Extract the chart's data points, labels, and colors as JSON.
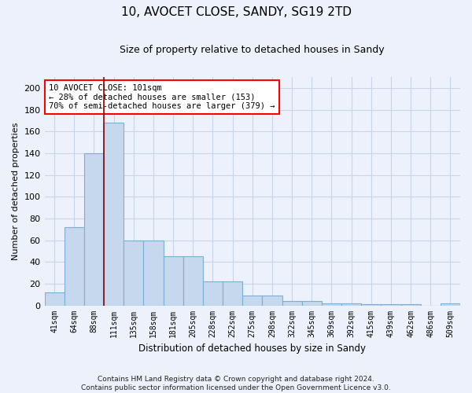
{
  "title": "10, AVOCET CLOSE, SANDY, SG19 2TD",
  "subtitle": "Size of property relative to detached houses in Sandy",
  "xlabel": "Distribution of detached houses by size in Sandy",
  "ylabel": "Number of detached properties",
  "bar_labels": [
    "41sqm",
    "64sqm",
    "88sqm",
    "111sqm",
    "135sqm",
    "158sqm",
    "181sqm",
    "205sqm",
    "228sqm",
    "252sqm",
    "275sqm",
    "298sqm",
    "322sqm",
    "345sqm",
    "369sqm",
    "392sqm",
    "415sqm",
    "439sqm",
    "462sqm",
    "486sqm",
    "509sqm"
  ],
  "bar_values": [
    12,
    72,
    140,
    168,
    60,
    60,
    45,
    45,
    22,
    22,
    9,
    9,
    4,
    4,
    2,
    2,
    1,
    1,
    1,
    0,
    2
  ],
  "bar_color": "#c5d8ed",
  "bar_edge_color": "#7bafd4",
  "grid_color": "#c8d4e8",
  "background_color": "#edf1fb",
  "red_line_index": 3,
  "annotation_text": "10 AVOCET CLOSE: 101sqm\n← 28% of detached houses are smaller (153)\n70% of semi-detached houses are larger (379) →",
  "annotation_box_color": "white",
  "annotation_box_edge": "red",
  "footer_text": "Contains HM Land Registry data © Crown copyright and database right 2024.\nContains public sector information licensed under the Open Government Licence v3.0.",
  "ylim": [
    0,
    210
  ],
  "yticks": [
    0,
    20,
    40,
    60,
    80,
    100,
    120,
    140,
    160,
    180,
    200
  ]
}
